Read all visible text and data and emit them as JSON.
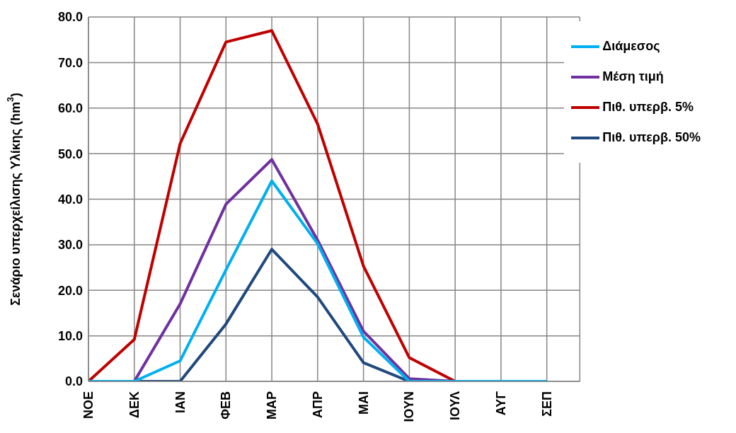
{
  "chart_data": {
    "type": "line",
    "ylabel": "Σενάριο υπερχείλισης Υλίκης (hm$^{3}$)",
    "categories": [
      "ΝΟΕ",
      "ΔΕΚ",
      "ΙΑΝ",
      "ΦΕΒ",
      "ΜΑΡ",
      "ΑΠΡ",
      "ΜΑΙ",
      "ΙΟΥΝ",
      "ΙΟΥΛ",
      "ΑΥΓ",
      "ΣΕΠ"
    ],
    "series": [
      {
        "name": "Πιθ. υπερβ. 5%",
        "color": "#c00000",
        "values": [
          0,
          9.2,
          52.2,
          74.5,
          77,
          56.5,
          25.3,
          5.2,
          0,
          0,
          0
        ]
      },
      {
        "name": "Πιθ. υπερβ. 50%",
        "color": "#1f497d",
        "values": [
          0,
          0,
          0,
          12.6,
          29,
          18.5,
          4.1,
          0,
          0,
          0,
          0
        ]
      },
      {
        "name": "Μέση τιμή",
        "color": "#7030a0",
        "values": [
          0,
          0,
          17,
          38.9,
          48.7,
          31,
          11,
          0.6,
          0,
          0,
          0
        ]
      },
      {
        "name": "Διάμεσος",
        "color": "#00b0f0",
        "values": [
          0,
          0,
          4.5,
          24.5,
          44,
          30.2,
          9.7,
          0,
          0,
          0,
          0
        ]
      }
    ],
    "ylim": [
      0,
      80
    ],
    "yticks": [
      {
        "value": 0,
        "label": "0.0"
      },
      {
        "value": 10,
        "label": "10.0"
      },
      {
        "value": 20,
        "label": "20.0"
      },
      {
        "value": 30,
        "label": "30.0"
      },
      {
        "value": 40,
        "label": "40.0"
      },
      {
        "value": 50,
        "label": "50.0"
      },
      {
        "value": 60,
        "label": "60.0"
      },
      {
        "value": 70,
        "label": "70.0"
      },
      {
        "value": 80,
        "label": "80.0"
      }
    ],
    "grid": true,
    "legend": "top right",
    "marker": "none",
    "line_style": "solid"
  }
}
